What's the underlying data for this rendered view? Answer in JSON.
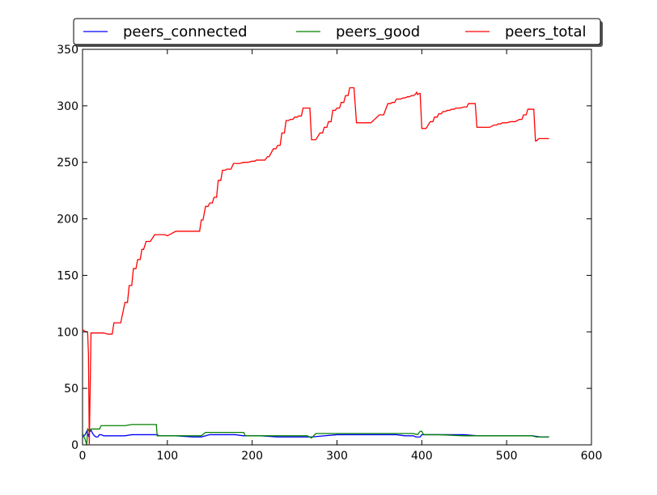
{
  "chart_data": {
    "type": "line",
    "title": "",
    "xlabel": "",
    "ylabel": "",
    "xlim": [
      0,
      600
    ],
    "ylim": [
      0,
      350
    ],
    "xticks": [
      0,
      100,
      200,
      300,
      400,
      500,
      600
    ],
    "yticks": [
      0,
      50,
      100,
      150,
      200,
      250,
      300,
      350
    ],
    "grid": false,
    "legend_position": "top, outside plot, horizontal",
    "series": [
      {
        "name": "peers_connected",
        "color": "#0000ff",
        "x": [
          0,
          3,
          5,
          7,
          8,
          10,
          12,
          14,
          16,
          18,
          20,
          22,
          25,
          30,
          35,
          40,
          50,
          58,
          70,
          88,
          90,
          110,
          130,
          140,
          150,
          180,
          190,
          210,
          230,
          250,
          270,
          300,
          330,
          350,
          370,
          380,
          390,
          393,
          398,
          400,
          430,
          440,
          450,
          465,
          500,
          530,
          540,
          550
        ],
        "y": [
          7,
          9,
          12,
          8,
          11,
          13,
          10,
          8,
          7,
          7,
          9,
          9,
          8,
          8,
          8,
          8,
          8,
          9,
          9,
          9,
          8,
          8,
          7,
          7,
          9,
          9,
          8,
          8,
          7,
          7,
          7,
          9,
          9,
          9,
          9,
          8,
          8,
          7,
          7,
          9,
          9,
          9,
          9,
          8,
          8,
          8,
          7,
          7
        ]
      },
      {
        "name": "peers_good",
        "color": "#008000",
        "x": [
          0,
          3,
          5,
          6,
          8,
          10,
          12,
          15,
          20,
          22,
          25,
          30,
          40,
          50,
          58,
          70,
          87,
          88,
          90,
          110,
          130,
          140,
          145,
          170,
          190,
          192,
          210,
          230,
          250,
          265,
          270,
          275,
          300,
          330,
          350,
          390,
          395,
          398,
          400,
          402,
          420,
          450,
          500,
          530,
          535,
          550
        ],
        "y": [
          10,
          5,
          0,
          14,
          12,
          14,
          14,
          14,
          14,
          17,
          17,
          17,
          17,
          17,
          18,
          18,
          18,
          8,
          8,
          8,
          8,
          8,
          11,
          11,
          11,
          8,
          8,
          8,
          8,
          8,
          6,
          10,
          10,
          10,
          10,
          10,
          9,
          12,
          12,
          9,
          9,
          8,
          8,
          8,
          7,
          7
        ]
      },
      {
        "name": "peers_total",
        "color": "#ff0000",
        "x": [
          0,
          2,
          4,
          5,
          6,
          7,
          8,
          9,
          10,
          12,
          15,
          20,
          25,
          30,
          32,
          35,
          37,
          40,
          43,
          45,
          50,
          53,
          55,
          58,
          60,
          63,
          65,
          68,
          70,
          72,
          75,
          78,
          80,
          85,
          90,
          95,
          97,
          100,
          110,
          120,
          130,
          133,
          135,
          138,
          140,
          142,
          145,
          148,
          150,
          153,
          155,
          158,
          160,
          163,
          165,
          168,
          170,
          175,
          178,
          180,
          185,
          190,
          195,
          200,
          203,
          205,
          210,
          215,
          218,
          220,
          225,
          228,
          230,
          233,
          235,
          238,
          240,
          243,
          245,
          248,
          250,
          253,
          255,
          258,
          260,
          263,
          265,
          268,
          270,
          275,
          280,
          283,
          285,
          288,
          290,
          293,
          295,
          298,
          300,
          303,
          305,
          308,
          310,
          313,
          315,
          318,
          320,
          323,
          325,
          328,
          330,
          335,
          340,
          350,
          355,
          360,
          363,
          365,
          368,
          370,
          375,
          378,
          380,
          383,
          385,
          388,
          390,
          392,
          394,
          395,
          397,
          398,
          400,
          403,
          405,
          410,
          413,
          415,
          418,
          420,
          423,
          425,
          428,
          430,
          433,
          435,
          438,
          440,
          445,
          450,
          453,
          455,
          458,
          460,
          463,
          465,
          468,
          470,
          480,
          485,
          488,
          490,
          493,
          495,
          500,
          505,
          510,
          515,
          518,
          520,
          523,
          525,
          528,
          530,
          532,
          534,
          535,
          538,
          540,
          543,
          545,
          550
        ],
        "y": [
          102,
          101,
          100,
          100,
          100,
          80,
          0,
          50,
          99,
          99,
          99,
          99,
          99,
          98,
          98,
          98,
          108,
          108,
          108,
          108,
          126,
          126,
          141,
          141,
          156,
          156,
          164,
          164,
          173,
          173,
          180,
          180,
          180,
          186,
          186,
          186,
          186,
          185,
          189,
          189,
          189,
          189,
          189,
          189,
          199,
          199,
          211,
          211,
          214,
          214,
          219,
          219,
          234,
          234,
          243,
          243,
          244,
          244,
          249,
          249,
          249,
          250,
          250,
          251,
          251,
          252,
          252,
          252,
          255,
          255,
          262,
          262,
          265,
          265,
          276,
          276,
          287,
          287,
          288,
          288,
          290,
          290,
          291,
          291,
          298,
          298,
          298,
          298,
          270,
          270,
          276,
          276,
          281,
          281,
          286,
          286,
          296,
          296,
          298,
          298,
          303,
          303,
          309,
          309,
          316,
          316,
          316,
          285,
          285,
          285,
          285,
          285,
          285,
          292,
          292,
          302,
          302,
          303,
          303,
          306,
          306,
          307,
          307,
          308,
          308,
          309,
          309,
          310,
          312,
          310,
          311,
          311,
          280,
          280,
          280,
          286,
          286,
          290,
          290,
          293,
          293,
          295,
          295,
          296,
          296,
          297,
          297,
          298,
          298,
          299,
          299,
          302,
          302,
          302,
          302,
          281,
          281,
          281,
          281,
          283,
          283,
          284,
          284,
          285,
          285,
          286,
          286,
          288,
          288,
          292,
          292,
          297,
          297,
          297,
          297,
          269,
          269,
          271,
          271,
          271,
          271,
          271
        ]
      }
    ]
  }
}
